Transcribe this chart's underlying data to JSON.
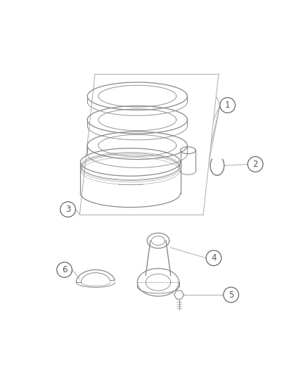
{
  "background_color": "#ffffff",
  "line_color": "#999999",
  "dark_line_color": "#666666",
  "label_font_size": 8.5,
  "fig_width": 4.38,
  "fig_height": 5.33,
  "dpi": 100
}
